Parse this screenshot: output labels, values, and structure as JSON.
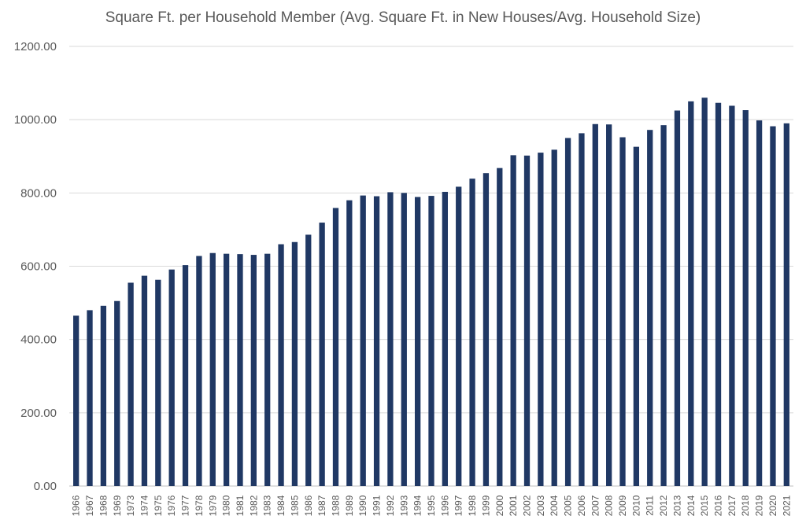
{
  "chart_data": {
    "type": "bar",
    "title": "Square Ft. per Household Member (Avg. Square Ft. in New Houses/Avg. Household Size)",
    "xlabel": "",
    "ylabel": "",
    "ylim": [
      0,
      1200
    ],
    "yticks": [
      "0.00",
      "200.00",
      "400.00",
      "600.00",
      "800.00",
      "1000.00",
      "1200.00"
    ],
    "grid": true,
    "bar_color": "#203864",
    "categories": [
      "1966",
      "1967",
      "1968",
      "1969",
      "1973",
      "1974",
      "1975",
      "1976",
      "1977",
      "1978",
      "1979",
      "1980",
      "1981",
      "1982",
      "1983",
      "1984",
      "1985",
      "1986",
      "1987",
      "1988",
      "1989",
      "1990",
      "1991",
      "1992",
      "1993",
      "1994",
      "1995",
      "1996",
      "1997",
      "1998",
      "1999",
      "2000",
      "2001",
      "2002",
      "2003",
      "2004",
      "2005",
      "2006",
      "2007",
      "2008",
      "2009",
      "2010",
      "2011",
      "2012",
      "2013",
      "2014",
      "2015",
      "2016",
      "2017",
      "2018",
      "2019",
      "2020",
      "2021"
    ],
    "values": [
      465,
      480,
      492,
      505,
      555,
      574,
      563,
      591,
      603,
      628,
      636,
      634,
      633,
      631,
      634,
      660,
      666,
      686,
      719,
      759,
      780,
      793,
      791,
      802,
      800,
      789,
      792,
      803,
      817,
      839,
      854,
      868,
      903,
      902,
      910,
      918,
      950,
      963,
      988,
      987,
      952,
      926,
      972,
      985,
      1025,
      1050,
      1060,
      1046,
      1038,
      1026,
      998,
      982,
      990
    ]
  }
}
